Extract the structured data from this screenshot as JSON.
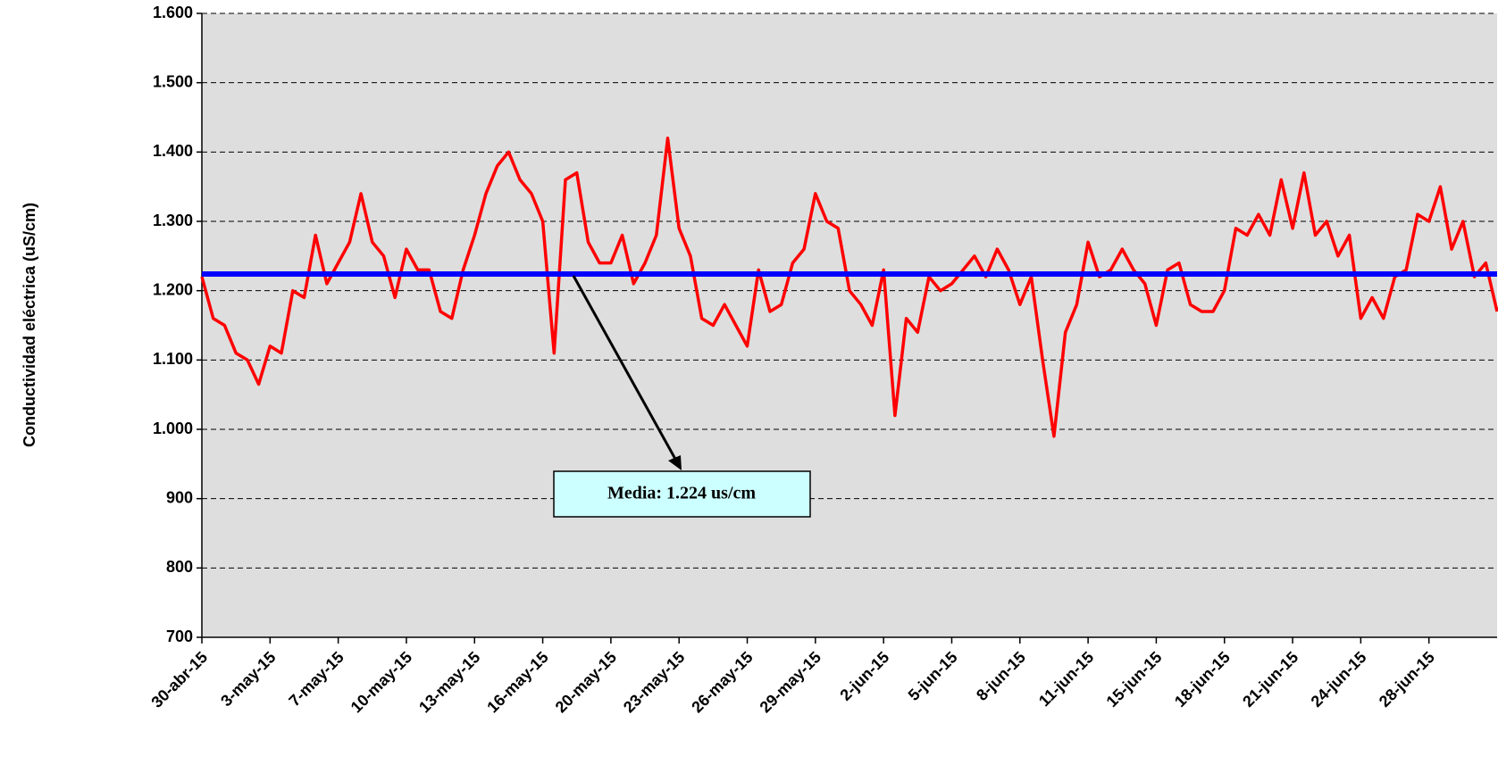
{
  "chart_data": {
    "type": "line",
    "y_axis_label": "Conductividad eléctrica (uS/cm)",
    "categories": [
      "30-abr-15",
      null,
      null,
      null,
      null,
      null,
      "3-may-15",
      null,
      null,
      null,
      null,
      null,
      "7-may-15",
      null,
      null,
      null,
      null,
      null,
      "10-may-15",
      null,
      null,
      null,
      null,
      null,
      "13-may-15",
      null,
      null,
      null,
      null,
      null,
      "16-may-15",
      null,
      null,
      null,
      null,
      null,
      "20-may-15",
      null,
      null,
      null,
      null,
      null,
      "23-may-15",
      null,
      null,
      null,
      null,
      null,
      "26-may-15",
      null,
      null,
      null,
      null,
      null,
      "29-may-15",
      null,
      null,
      null,
      null,
      null,
      "2-jun-15",
      null,
      null,
      null,
      null,
      null,
      "5-jun-15",
      null,
      null,
      null,
      null,
      null,
      "8-jun-15",
      null,
      null,
      null,
      null,
      null,
      "11-jun-15",
      null,
      null,
      null,
      null,
      null,
      "15-jun-15",
      null,
      null,
      null,
      null,
      null,
      "18-jun-15",
      null,
      null,
      null,
      null,
      null,
      "21-jun-15",
      null,
      null,
      null,
      null,
      null,
      "24-jun-15",
      null,
      null,
      null,
      null,
      null,
      "28-jun-15",
      null,
      null,
      null,
      null,
      null,
      null
    ],
    "values": [
      1220,
      1160,
      1150,
      1110,
      1100,
      1065,
      1120,
      1110,
      1200,
      1190,
      1280,
      1210,
      1240,
      1270,
      1340,
      1270,
      1250,
      1190,
      1260,
      1230,
      1230,
      1170,
      1160,
      1230,
      1280,
      1340,
      1380,
      1400,
      1360,
      1340,
      1300,
      1110,
      1360,
      1370,
      1270,
      1240,
      1240,
      1280,
      1210,
      1240,
      1280,
      1420,
      1290,
      1250,
      1160,
      1150,
      1180,
      1150,
      1120,
      1230,
      1170,
      1180,
      1240,
      1260,
      1340,
      1300,
      1290,
      1200,
      1180,
      1150,
      1230,
      1020,
      1160,
      1140,
      1220,
      1200,
      1210,
      1230,
      1250,
      1220,
      1260,
      1230,
      1180,
      1220,
      1100,
      990,
      1140,
      1180,
      1270,
      1220,
      1230,
      1260,
      1230,
      1210,
      1150,
      1230,
      1240,
      1180,
      1170,
      1170,
      1200,
      1290,
      1280,
      1310,
      1280,
      1360,
      1290,
      1370,
      1280,
      1300,
      1250,
      1280,
      1160,
      1190,
      1160,
      1220,
      1230,
      1310,
      1300,
      1350,
      1260,
      1300,
      1220,
      1240,
      1170
    ],
    "color": "#ff0000",
    "mean_line": {
      "value": 1224,
      "color": "#0000ff",
      "label": "Media: 1.224 us/cm"
    },
    "ylim": [
      700,
      1600
    ],
    "yticks": [
      700,
      800,
      900,
      {
        "value": 1000,
        "label": "1.000"
      },
      {
        "value": 1100,
        "label": "1.100"
      },
      {
        "value": 1200,
        "label": "1.200"
      },
      {
        "value": 1300,
        "label": "1.300"
      },
      {
        "value": 1400,
        "label": "1.400"
      },
      {
        "value": 1500,
        "label": "1.500"
      },
      {
        "value": 1600,
        "label": "1.600"
      }
    ],
    "grid": true,
    "plot_background": "#dedede"
  }
}
